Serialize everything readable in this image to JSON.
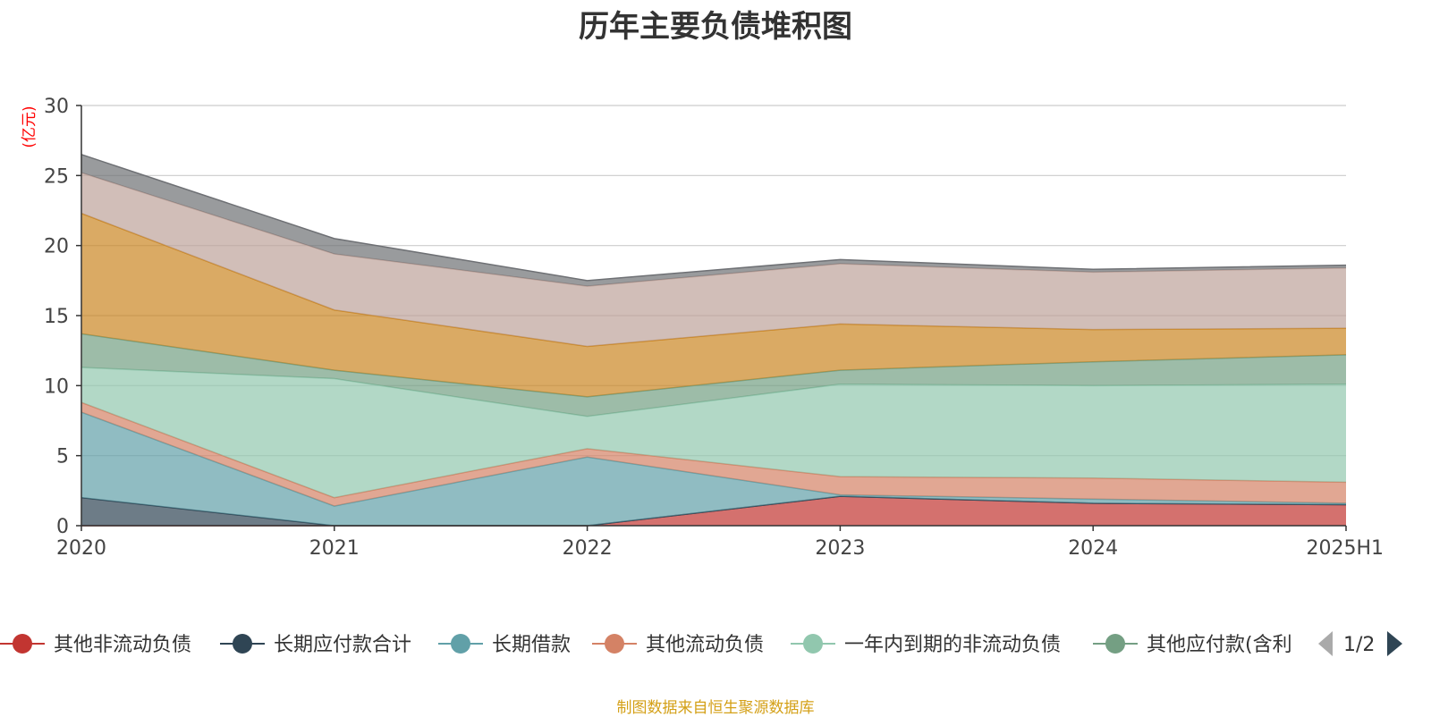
{
  "chart_data": {
    "type": "area",
    "stacked": true,
    "title": "历年主要负债堆积图",
    "ylabel": "(亿元)",
    "ylim": [
      0,
      30
    ],
    "yticks": [
      0,
      5,
      10,
      15,
      20,
      25,
      30
    ],
    "grid": true,
    "categories": [
      "2020",
      "2021",
      "2022",
      "2023",
      "2024",
      "2025H1"
    ],
    "series": [
      {
        "name": "其他非流动负债",
        "color": "#c23531",
        "values": [
          0,
          0,
          0,
          2.1,
          1.6,
          1.5
        ]
      },
      {
        "name": "长期应付款合计",
        "color": "#2f4554",
        "values": [
          2.0,
          0,
          0,
          0,
          0,
          0
        ]
      },
      {
        "name": "长期借款",
        "color": "#61a0a8",
        "values": [
          6.1,
          1.4,
          4.9,
          0.1,
          0.3,
          0.1
        ]
      },
      {
        "name": "其他流动负债",
        "color": "#d48265",
        "values": [
          0.7,
          0.6,
          0.6,
          1.3,
          1.5,
          1.5
        ]
      },
      {
        "name": "一年内到期的非流动负债",
        "color": "#91c7ae",
        "values": [
          2.5,
          8.5,
          2.3,
          6.6,
          6.6,
          7.0
        ]
      },
      {
        "name": "其他应付款(含利息和股利)",
        "color": "#749f83",
        "values": [
          2.4,
          0.6,
          1.4,
          1.0,
          1.7,
          2.1
        ]
      },
      {
        "name": "",
        "color": "#ca8622",
        "values": [
          8.6,
          4.3,
          3.6,
          3.3,
          2.3,
          1.9
        ]
      },
      {
        "name": "",
        "color": "#bda29a",
        "values": [
          2.9,
          4.0,
          4.3,
          4.3,
          4.1,
          4.3
        ]
      },
      {
        "name": "",
        "color": "#6e7074",
        "values": [
          1.3,
          1.1,
          0.4,
          0.3,
          0.2,
          0.2
        ]
      }
    ]
  },
  "legend": {
    "items": [
      "其他非流动负债",
      "长期应付款合计",
      "长期借款",
      "其他流动负债",
      "一年内到期的非流动负债",
      "其他应付款(含利"
    ],
    "page": "1/2"
  },
  "source": "制图数据来自恒生聚源数据库",
  "colors": {
    "title": "#333333",
    "axis": "#333333",
    "grid": "#cccccc",
    "ylabel": "#ff0000",
    "source": "#d4a017",
    "page_prev": "#aaaaaa",
    "page_next": "#2f4554"
  }
}
